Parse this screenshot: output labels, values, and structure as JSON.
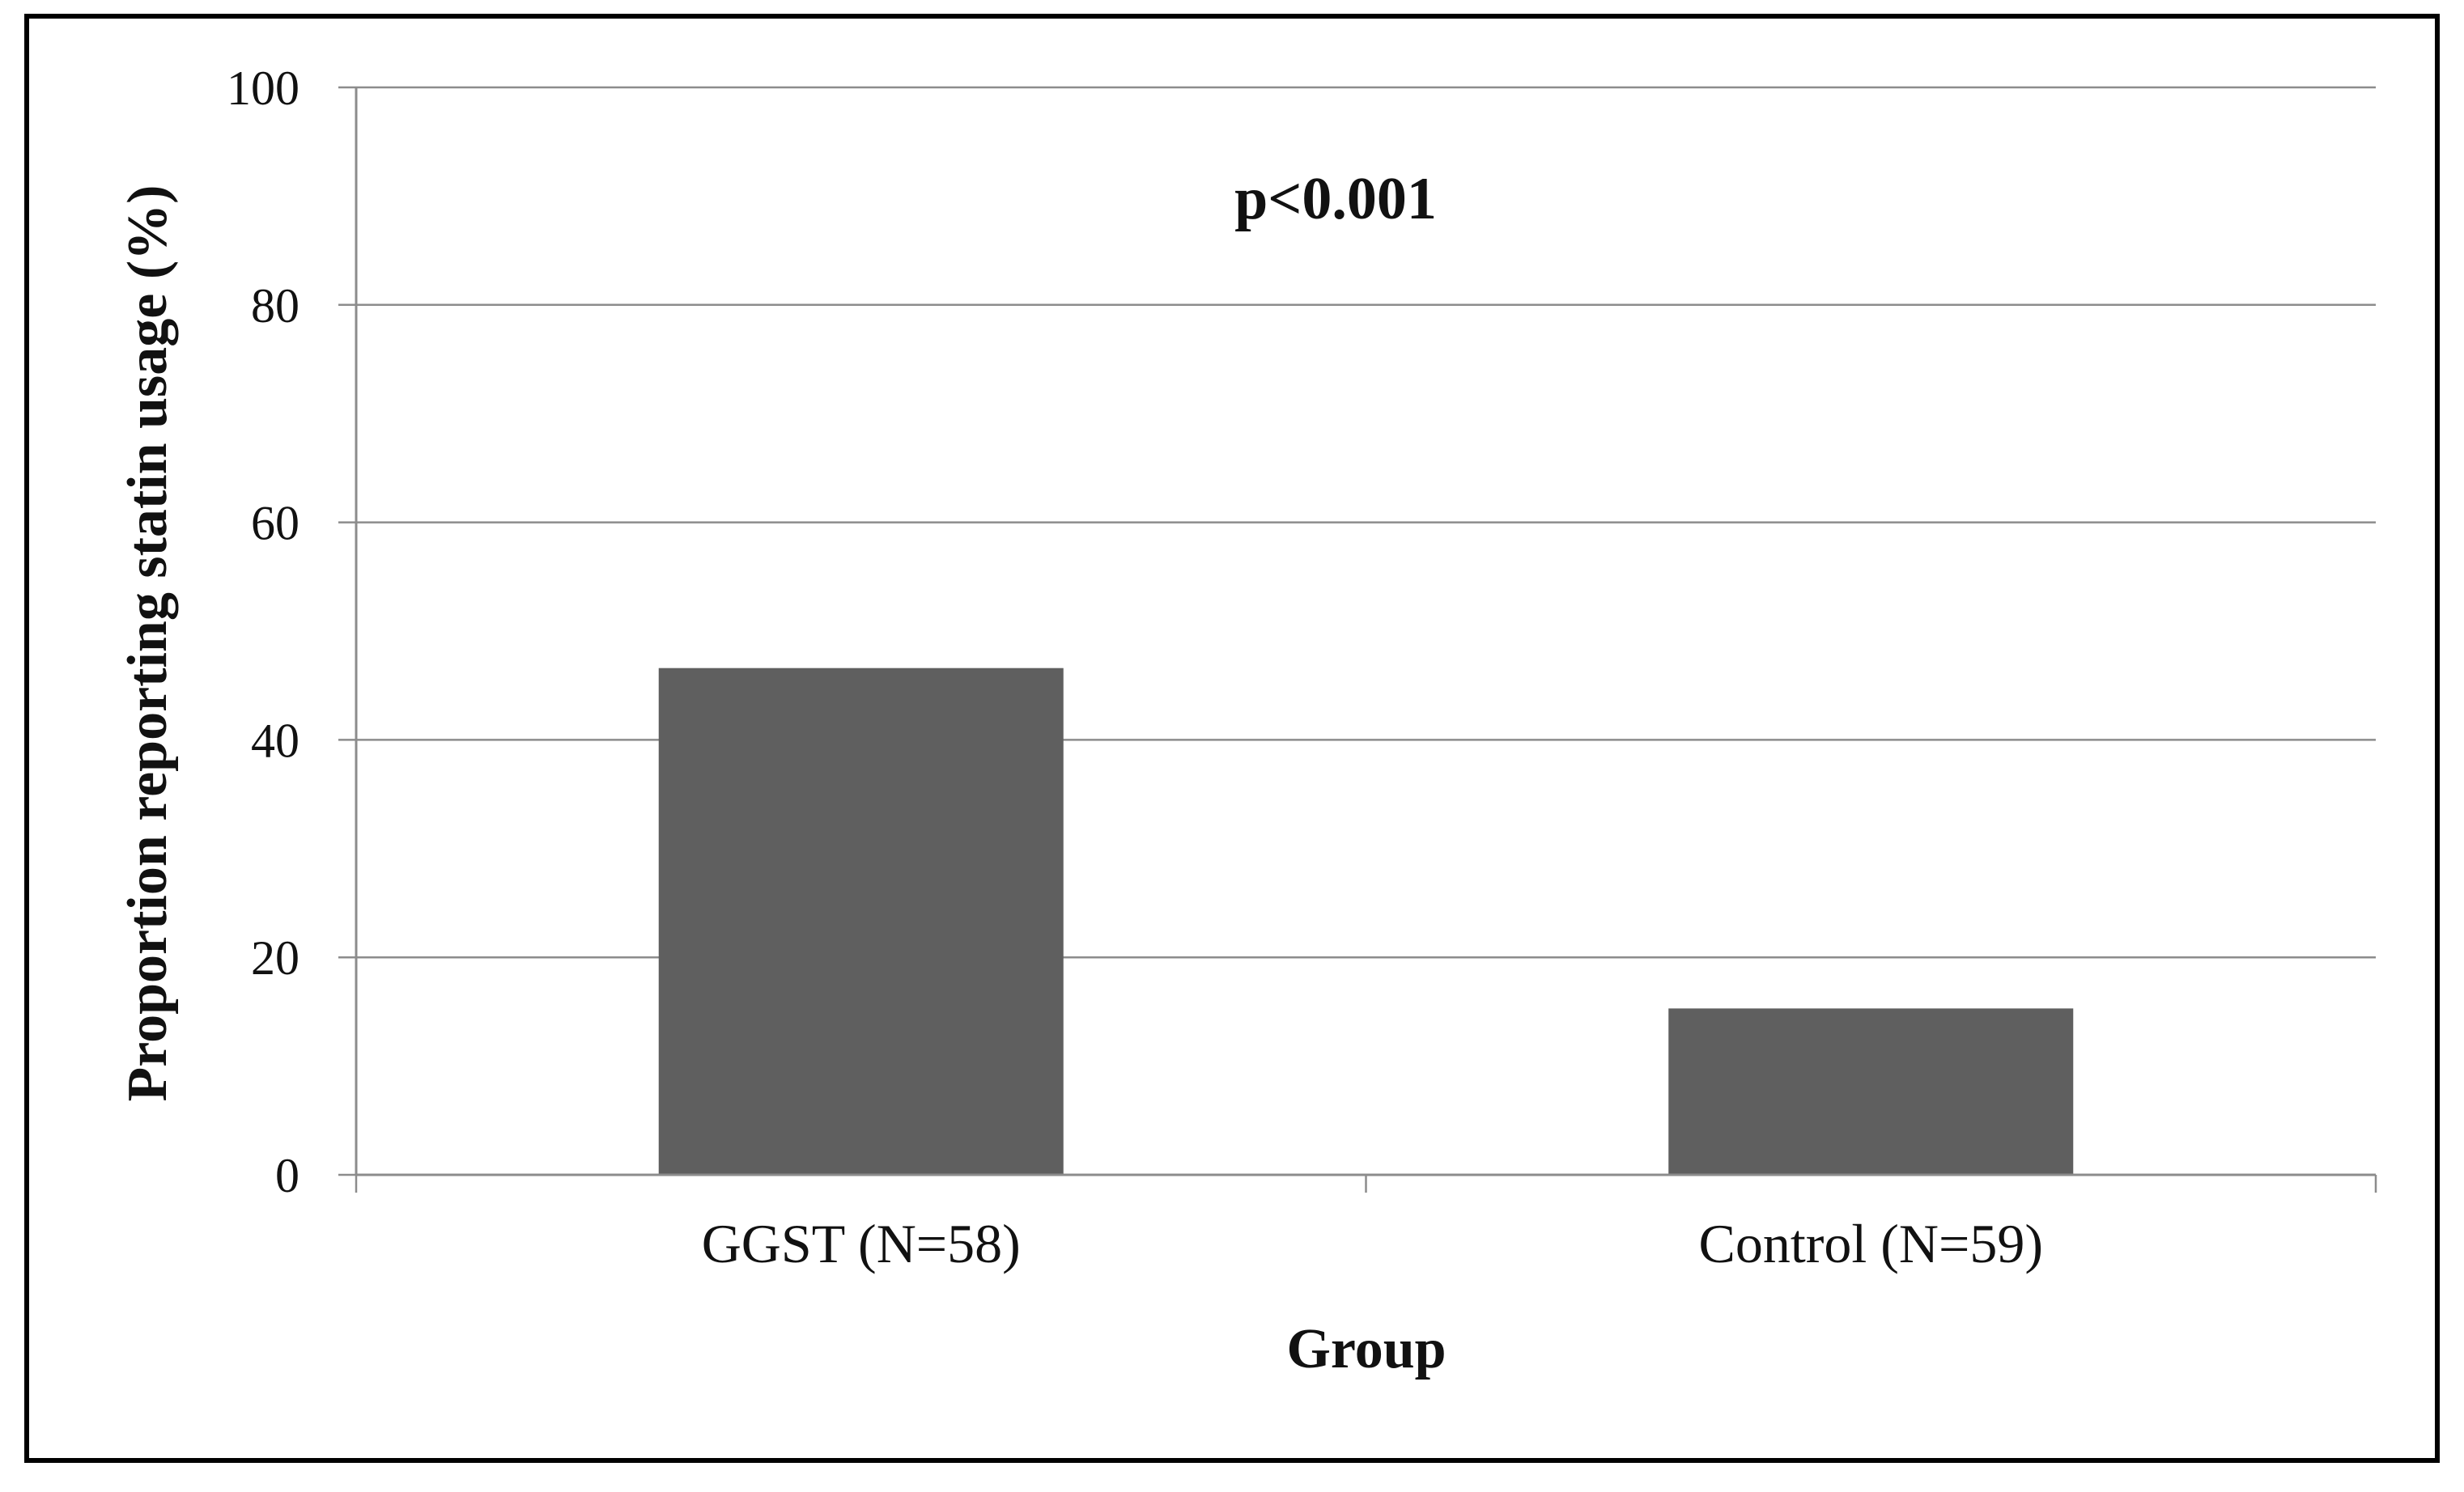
{
  "chart_data": {
    "type": "bar",
    "categories": [
      "GGST (N=58)",
      "Control (N=59)"
    ],
    "values": [
      46.6,
      15.3
    ],
    "xlabel": "Group",
    "ylabel": "Proportion reporting statin usage (%)",
    "ylim": [
      0,
      100
    ],
    "yticks": [
      0,
      20,
      40,
      60,
      80,
      100
    ],
    "ytick_labels": [
      "0",
      "20",
      "40",
      "60",
      "80",
      "100"
    ],
    "annotation": "p<0.001",
    "grid": true,
    "legend": "none",
    "bar_color": "#5f5f5f",
    "grid_color": "#8c8c8c",
    "frame_color": "#000000"
  }
}
